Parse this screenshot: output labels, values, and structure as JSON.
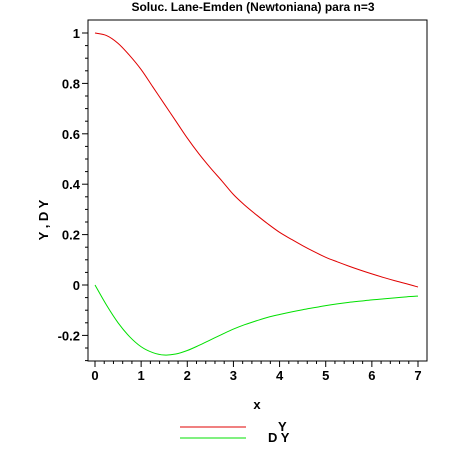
{
  "chart_data": {
    "type": "line",
    "title": "Soluc. Lane-Emden (Newtoniana) para n=3",
    "xlabel": "x",
    "ylabel": "Y , D Y",
    "xlim": [
      0,
      7.1
    ],
    "ylim": [
      -0.3,
      1.02
    ],
    "x_ticks": [
      0,
      1,
      2,
      3,
      4,
      5,
      6,
      7
    ],
    "x_tick_labels": [
      "0",
      "1",
      "2",
      "3",
      "4",
      "5",
      "6",
      "7"
    ],
    "y_ticks": [
      -0.2,
      0,
      0.2,
      0.4,
      0.6,
      0.8,
      1
    ],
    "y_tick_labels": [
      "-0.2",
      "0",
      "0.2",
      "0.4",
      "0.6",
      "0.8",
      "1"
    ],
    "grid": false,
    "legend_position": "bottom",
    "x": [
      0,
      0.25,
      0.5,
      0.75,
      1,
      1.25,
      1.5,
      1.75,
      2,
      2.25,
      2.5,
      2.75,
      3,
      3.25,
      3.5,
      3.75,
      4,
      4.25,
      4.5,
      4.75,
      5,
      5.25,
      5.5,
      5.75,
      6,
      6.25,
      6.5,
      6.75,
      7
    ],
    "series": [
      {
        "name": "Y",
        "color": "#e00000",
        "values": [
          1.0,
          0.99,
          0.959,
          0.911,
          0.855,
          0.787,
          0.719,
          0.651,
          0.583,
          0.521,
          0.465,
          0.413,
          0.359,
          0.316,
          0.278,
          0.242,
          0.209,
          0.182,
          0.156,
          0.132,
          0.11,
          0.092,
          0.075,
          0.059,
          0.044,
          0.03,
          0.017,
          0.005,
          -0.008
        ]
      },
      {
        "name": "D Y",
        "color": "#00e000",
        "values": [
          0.0,
          -0.08,
          -0.15,
          -0.205,
          -0.245,
          -0.268,
          -0.278,
          -0.274,
          -0.26,
          -0.24,
          -0.218,
          -0.196,
          -0.175,
          -0.157,
          -0.142,
          -0.128,
          -0.117,
          -0.107,
          -0.098,
          -0.09,
          -0.082,
          -0.075,
          -0.069,
          -0.064,
          -0.059,
          -0.055,
          -0.051,
          -0.047,
          -0.044
        ]
      }
    ]
  }
}
